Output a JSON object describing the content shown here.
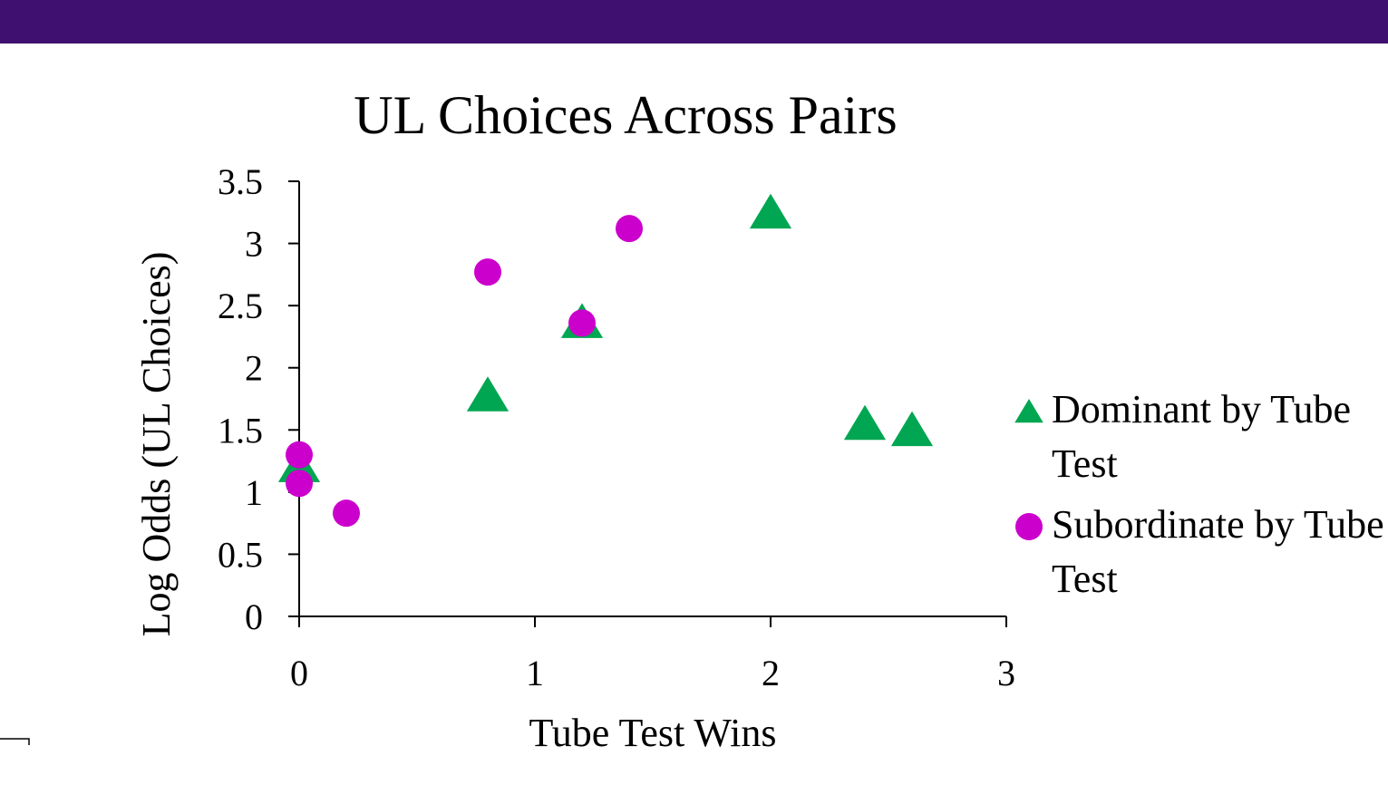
{
  "chart_data": {
    "type": "scatter",
    "title": "UL Choices Across Pairs",
    "xlabel": "Tube Test Wins",
    "ylabel": "Log Odds (UL Choices)",
    "xlim": [
      0,
      3
    ],
    "xticks": [
      0,
      1,
      2,
      3
    ],
    "ylim": [
      0,
      3.5
    ],
    "yticks": [
      0,
      0.5,
      1,
      1.5,
      2,
      2.5,
      3,
      3.5
    ],
    "series": [
      {
        "name": "Dominant by Tube Test",
        "color": "#00a651",
        "marker": "triangle",
        "x": [
          0,
          0.8,
          1.2,
          2.0,
          2.4,
          2.6
        ],
        "values": [
          1.2,
          1.77,
          2.36,
          3.24,
          1.54,
          1.49
        ]
      },
      {
        "name": "Subordinate by Tube Test",
        "color": "#cc00cc",
        "marker": "circle",
        "x": [
          0,
          0,
          0.2,
          0.8,
          1.2,
          1.4
        ],
        "values": [
          1.3,
          1.07,
          0.83,
          2.77,
          2.36,
          3.12
        ]
      }
    ]
  }
}
